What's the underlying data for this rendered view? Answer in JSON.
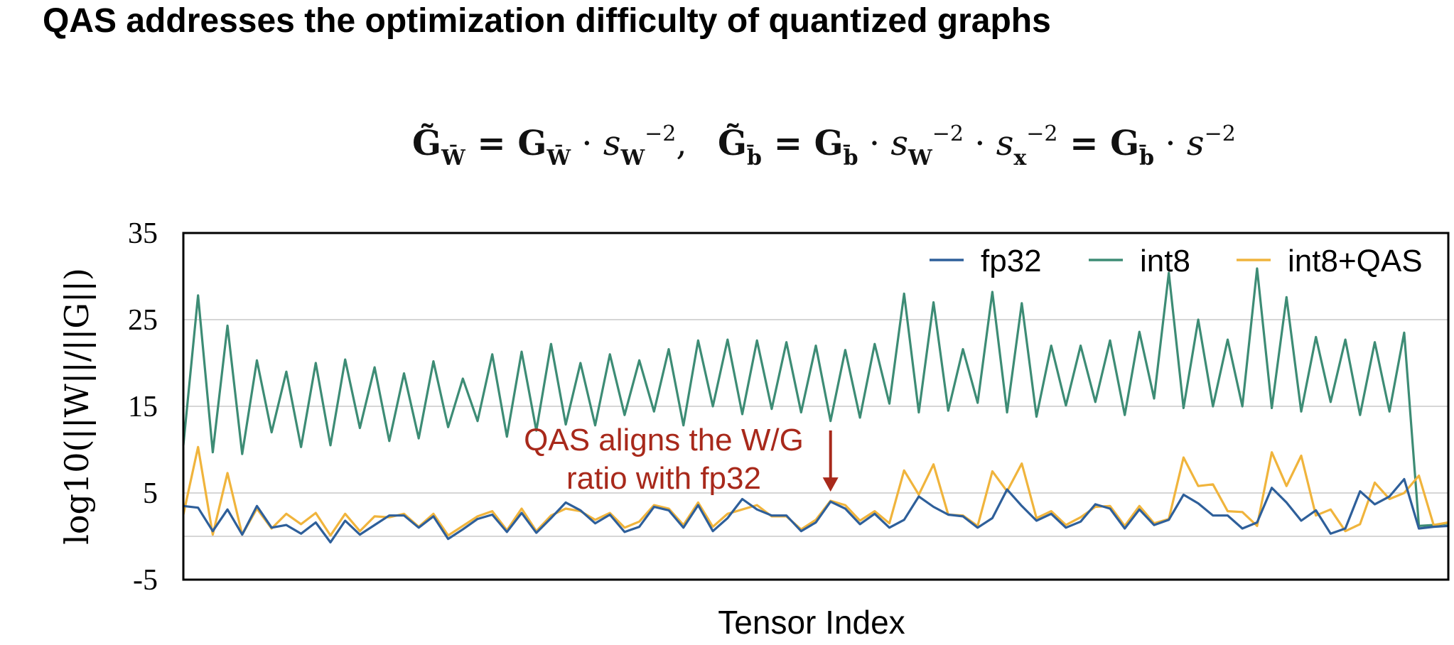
{
  "header": {
    "title": "QAS addresses the optimization difficulty of quantized graphs"
  },
  "formula": {
    "left": "G̃_W̄ = G_W̄ · s_W^−2,",
    "right": "G̃_b̄ = G_b̄ · s_W^−2 · s_x^−2 = G_b̄ · s^−2"
  },
  "chart_data": {
    "type": "line",
    "title": "",
    "xlabel": "Tensor Index",
    "ylabel": "log10(||W||/||G||)",
    "ylim": [
      -5,
      35
    ],
    "yticks": [
      35,
      25,
      15,
      5,
      -5
    ],
    "ytick_labels": [
      "35",
      "25",
      "15",
      "5",
      "-5"
    ],
    "grid": "horizontal",
    "legend_position": "top-right",
    "x": [
      0,
      1,
      2,
      3,
      4,
      5,
      6,
      7,
      8,
      9,
      10,
      11,
      12,
      13,
      14,
      15,
      16,
      17,
      18,
      19,
      20,
      21,
      22,
      23,
      24,
      25,
      26,
      27,
      28,
      29,
      30,
      31,
      32,
      33,
      34,
      35,
      36,
      37,
      38,
      39,
      40,
      41,
      42,
      43,
      44,
      45,
      46,
      47,
      48,
      49,
      50,
      51,
      52,
      53,
      54,
      55,
      56,
      57,
      58,
      59,
      60,
      61,
      62,
      63,
      64,
      65,
      66,
      67,
      68,
      69,
      70,
      71,
      72,
      73,
      74,
      75,
      76,
      77,
      78,
      79,
      80,
      81,
      82,
      83,
      84,
      85,
      86
    ],
    "series": [
      {
        "name": "fp32",
        "color": "#2e5f9a",
        "values": [
          3.5,
          3.3,
          0.6,
          3.1,
          0.2,
          3.5,
          1.0,
          1.3,
          0.3,
          1.6,
          -0.7,
          1.8,
          0.2,
          1.3,
          2.4,
          2.4,
          1.0,
          2.3,
          -0.3,
          0.8,
          2.0,
          2.5,
          0.5,
          2.7,
          0.4,
          2.1,
          3.9,
          3.0,
          1.5,
          2.5,
          0.5,
          1.1,
          3.4,
          3.0,
          1.0,
          3.6,
          0.6,
          2.1,
          4.3,
          3.1,
          2.4,
          2.4,
          0.6,
          1.6,
          4.0,
          3.2,
          1.4,
          2.6,
          1.0,
          1.9,
          4.6,
          3.4,
          2.5,
          2.3,
          1.0,
          2.1,
          5.4,
          3.5,
          1.8,
          2.6,
          1.0,
          1.7,
          3.7,
          3.2,
          0.9,
          3.1,
          1.3,
          1.9,
          4.8,
          3.8,
          2.4,
          2.4,
          0.9,
          1.6,
          5.6,
          3.9,
          1.8,
          3.0,
          0.3,
          0.9,
          5.2,
          3.7,
          4.6,
          6.6,
          0.9,
          1.1,
          1.2
        ]
      },
      {
        "name": "int8",
        "color": "#3d8c75",
        "values": [
          10.5,
          27.8,
          9.7,
          24.3,
          9.5,
          20.3,
          12.0,
          19.0,
          10.3,
          20.0,
          10.5,
          20.4,
          12.5,
          19.5,
          11.0,
          18.8,
          11.3,
          20.2,
          12.6,
          18.2,
          13.3,
          21.0,
          11.5,
          21.3,
          12.2,
          22.2,
          12.9,
          20.0,
          12.8,
          21.0,
          14.0,
          20.3,
          14.4,
          21.6,
          12.8,
          22.6,
          15.0,
          22.7,
          14.1,
          22.6,
          14.7,
          22.4,
          14.3,
          22.0,
          13.3,
          21.5,
          13.7,
          22.2,
          15.3,
          28.0,
          14.3,
          27.0,
          14.5,
          21.6,
          15.4,
          28.2,
          14.3,
          26.9,
          13.8,
          22.0,
          15.1,
          22.0,
          15.5,
          22.6,
          14.0,
          23.6,
          15.9,
          30.4,
          14.8,
          25.0,
          15.0,
          22.7,
          15.0,
          30.9,
          14.8,
          27.6,
          14.4,
          23.0,
          15.5,
          22.7,
          14.0,
          22.4,
          14.4,
          23.5,
          1.2,
          1.3,
          1.5
        ]
      },
      {
        "name": "int8+QAS",
        "color": "#f0b43c",
        "values": [
          2.5,
          10.3,
          0.2,
          7.3,
          0.2,
          3.2,
          0.9,
          2.6,
          1.4,
          2.7,
          0.1,
          2.6,
          0.6,
          2.3,
          2.2,
          2.6,
          1.1,
          2.6,
          0.1,
          1.2,
          2.3,
          2.9,
          0.7,
          3.2,
          0.6,
          2.4,
          3.2,
          2.9,
          1.9,
          2.7,
          1.0,
          1.7,
          3.6,
          3.2,
          1.3,
          3.9,
          1.1,
          2.6,
          3.1,
          3.6,
          2.3,
          2.3,
          0.8,
          1.9,
          4.1,
          3.6,
          1.8,
          2.9,
          1.5,
          7.6,
          4.8,
          8.3,
          2.5,
          2.4,
          1.2,
          7.5,
          5.2,
          8.4,
          2.1,
          2.9,
          1.3,
          2.2,
          3.4,
          3.5,
          1.2,
          3.5,
          1.5,
          2.0,
          9.1,
          5.8,
          6.0,
          2.9,
          2.8,
          1.2,
          9.7,
          5.8,
          9.3,
          2.4,
          3.1,
          0.6,
          1.4,
          6.2,
          4.3,
          5.0,
          7.0,
          1.3,
          1.6
        ]
      }
    ],
    "annotations": [
      {
        "text_line1": "QAS aligns the W/G",
        "text_line2": "ratio with fp32",
        "color": "#a8291b",
        "x": 44,
        "y": 4.5
      }
    ]
  }
}
